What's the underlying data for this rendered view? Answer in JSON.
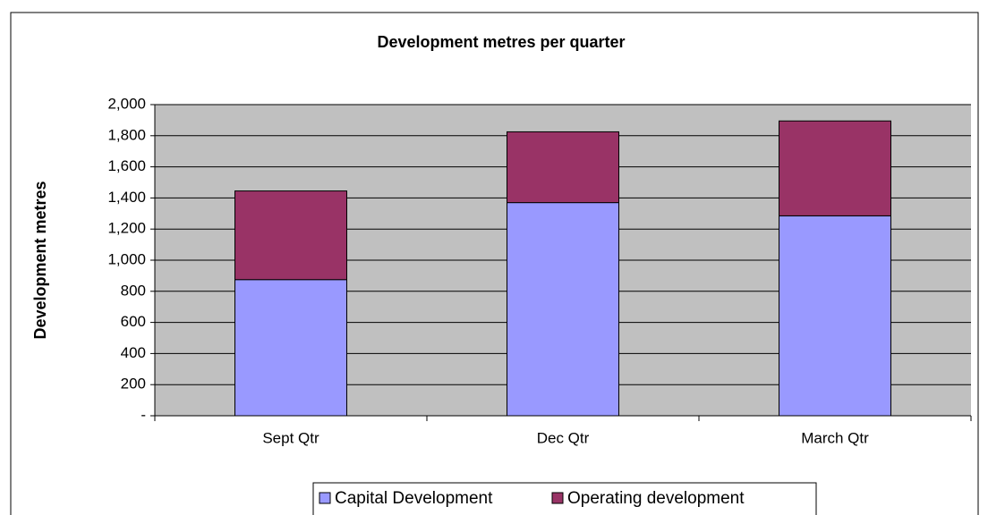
{
  "chart_data": {
    "type": "stacked_bar",
    "title": "Development metres per quarter",
    "y_label": "Development metres",
    "categories": [
      "Sept Qtr",
      "Dec Qtr",
      "March Qtr"
    ],
    "series": [
      {
        "name": "Capital Development",
        "color": "#9999ff",
        "values": [
          875,
          1370,
          1285
        ]
      },
      {
        "name": "Operating development",
        "color": "#993366",
        "values": [
          570,
          455,
          610
        ]
      }
    ],
    "ylim": [
      0,
      2000
    ],
    "yticks": [
      {
        "value": 0,
        "label": "-"
      },
      200,
      400,
      600,
      800,
      {
        "value": 1000,
        "label": "1,000"
      },
      {
        "value": 1200,
        "label": "1,200"
      },
      {
        "value": 1400,
        "label": "1,400"
      },
      {
        "value": 1600,
        "label": "1,600"
      },
      {
        "value": 1800,
        "label": "1,800"
      },
      {
        "value": 2000,
        "label": "2,000"
      }
    ],
    "grid": true,
    "legend": "bottom",
    "plot_background": "#c0c0c0"
  }
}
